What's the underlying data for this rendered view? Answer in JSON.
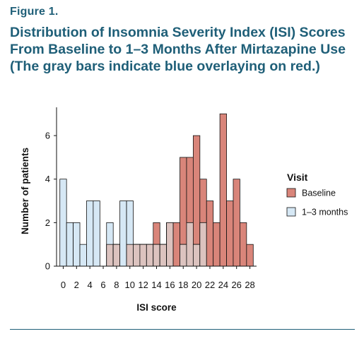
{
  "figure_label": "Figure 1.",
  "figure_title": "Distribution of Insomnia Severity Index (ISI) Scores From Baseline to 1–3 Months After Mirtazapine Use (The gray bars indicate blue overlaying on red.)",
  "chart_data": {
    "type": "bar",
    "title": "Distribution of Insomnia Severity Index (ISI) Scores From Baseline to 1–3 Months After Mirtazapine Use (The gray bars indicate blue overlaying on red.)",
    "xlabel": "ISI score",
    "ylabel": "Number of patients",
    "xlim": [
      -1,
      29
    ],
    "ylim": [
      0,
      7.3
    ],
    "xticks": [
      0,
      2,
      4,
      6,
      8,
      10,
      12,
      14,
      16,
      18,
      20,
      22,
      24,
      26,
      28
    ],
    "yticks": [
      0,
      2,
      4,
      6
    ],
    "legend_title": "Visit",
    "legend_position": "right",
    "grid": false,
    "x": [
      0,
      1,
      2,
      3,
      4,
      5,
      6,
      7,
      8,
      9,
      10,
      11,
      12,
      13,
      14,
      15,
      16,
      17,
      18,
      19,
      20,
      21,
      22,
      23,
      24,
      25,
      26,
      27,
      28
    ],
    "series": [
      {
        "name": "Baseline",
        "color": "#d9857a",
        "values": [
          0,
          0,
          0,
          0,
          0,
          0,
          0,
          1,
          1,
          0,
          1,
          1,
          1,
          1,
          2,
          1,
          2,
          2,
          5,
          5,
          6,
          4,
          3,
          2,
          7,
          3,
          4,
          2,
          1
        ]
      },
      {
        "name": "1–3 months",
        "color": "#d6e8f5",
        "values": [
          4,
          2,
          2,
          1,
          3,
          3,
          0,
          2,
          1,
          3,
          3,
          1,
          1,
          1,
          1,
          1,
          2,
          0,
          1,
          2,
          1,
          2,
          0,
          0,
          0,
          0,
          0,
          0,
          0
        ]
      }
    ],
    "overlap_color": "#dcc3bf"
  }
}
